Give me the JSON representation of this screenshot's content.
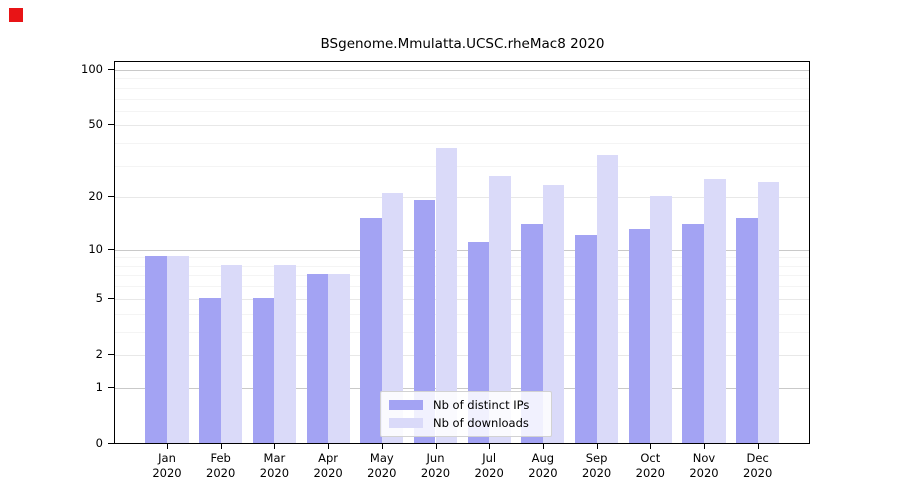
{
  "marker": {
    "color": "#e81416"
  },
  "chart_data": {
    "type": "bar",
    "title": "BSgenome.Mmulatta.UCSC.rheMac8 2020",
    "months": [
      "Jan",
      "Feb",
      "Mar",
      "Apr",
      "May",
      "Jun",
      "Jul",
      "Aug",
      "Sep",
      "Oct",
      "Nov",
      "Dec"
    ],
    "year_label": "2020",
    "series": [
      {
        "name": "Nb of distinct IPs",
        "color": "#a3a3f3",
        "values": [
          9,
          5,
          5,
          7,
          15,
          19,
          11,
          14,
          12,
          13,
          14,
          15
        ]
      },
      {
        "name": "Nb of downloads",
        "color": "#dadaf9",
        "values": [
          9,
          8,
          8,
          7,
          21,
          37,
          26,
          23,
          34,
          20,
          25,
          24
        ]
      }
    ],
    "y_scale": "log10(1+x)",
    "y_ticks": [
      0,
      1,
      2,
      5,
      10,
      20,
      50,
      100
    ],
    "y_minor_ticks": [
      3,
      4,
      6,
      7,
      8,
      9,
      30,
      40,
      60,
      70,
      80,
      90
    ],
    "ylim": [
      0,
      110
    ],
    "grid": true,
    "legend_position": "bottom-center"
  },
  "colors": {
    "decade_grid": "#c9c9c9",
    "major_grid": "#e8e8e8",
    "minor_grid": "#f4f4f4",
    "axis": "#000000"
  }
}
